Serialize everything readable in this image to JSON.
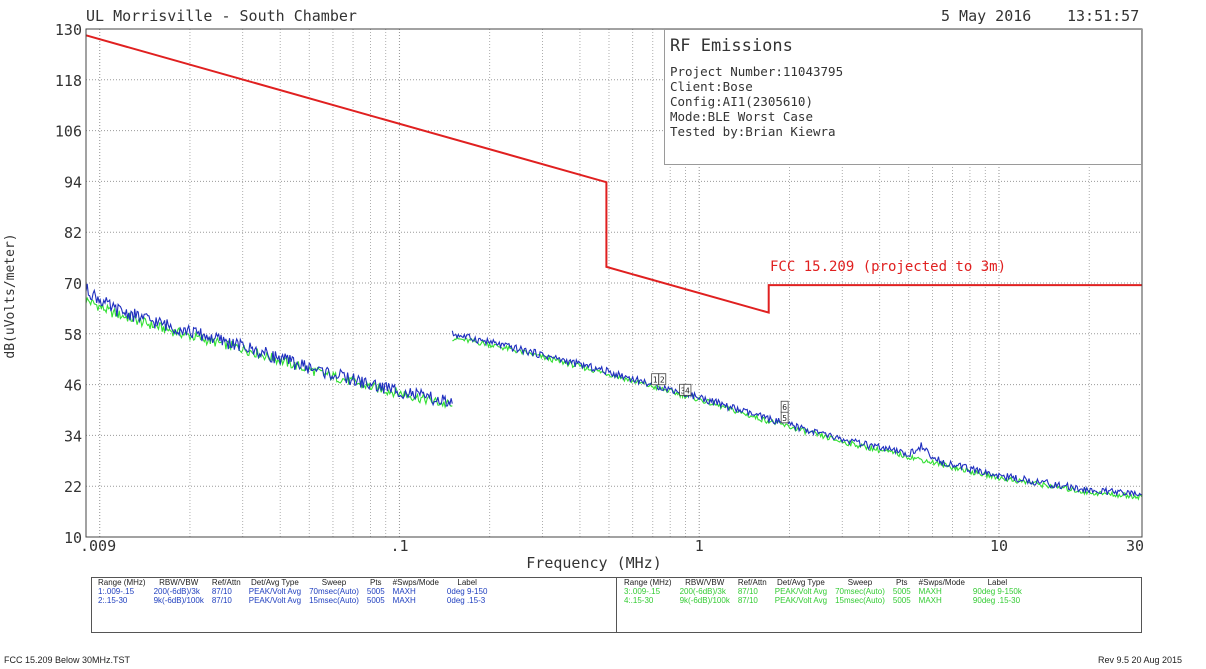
{
  "header": {
    "site": "UL Morrisville - South Chamber",
    "date": "5 May 2016",
    "time": "13:51:57"
  },
  "info_box": {
    "title": "RF Emissions",
    "lines": [
      "Project Number:11043795",
      "Client:Bose",
      "Config:AI1(2305610)",
      "Mode:BLE Worst Case",
      "Tested by:Brian Kiewra"
    ]
  },
  "limit_label": "FCC 15.209 (projected to 3m)",
  "colors": {
    "limit": "#e02020",
    "trace_peak": "#1f2fbf",
    "trace_avg": "#33e033",
    "grid": "#9a9a9a",
    "axis": "#444444"
  },
  "chart_data": {
    "type": "line",
    "title": "",
    "xlabel": "Frequency (MHz)",
    "ylabel": "dB(uVolts/meter)",
    "x_scale": "log",
    "xlim": [
      0.009,
      30
    ],
    "ylim": [
      10,
      130
    ],
    "x_ticks": [
      {
        "value": 0.009,
        "label": ".009"
      },
      {
        "value": 0.1,
        "label": ".1"
      },
      {
        "value": 1,
        "label": "1"
      },
      {
        "value": 10,
        "label": "10"
      },
      {
        "value": 30,
        "label": "30"
      }
    ],
    "y_ticks": [
      130,
      118,
      106,
      94,
      82,
      70,
      58,
      46,
      34,
      22,
      10
    ],
    "grid": true,
    "limit_line": {
      "name": "FCC 15.209 (projected to 3m)",
      "points": [
        [
          0.009,
          128.5
        ],
        [
          0.49,
          93.8
        ],
        [
          0.49,
          73.8
        ],
        [
          1.705,
          63.0
        ],
        [
          1.705,
          69.5
        ],
        [
          30,
          69.5
        ]
      ]
    },
    "series": [
      {
        "role": "peak",
        "segments": [
          [
            [
              0.009,
              68.5
            ],
            [
              0.011,
              64.0
            ],
            [
              0.015,
              61.0
            ],
            [
              0.02,
              58.5
            ],
            [
              0.03,
              55.0
            ],
            [
              0.05,
              50.0
            ],
            [
              0.08,
              46.0
            ],
            [
              0.1,
              44.5
            ],
            [
              0.15,
              41.5
            ]
          ],
          [
            [
              0.15,
              58.0
            ],
            [
              0.2,
              56.0
            ],
            [
              0.3,
              53.0
            ],
            [
              0.5,
              49.0
            ],
            [
              0.7,
              46.0
            ],
            [
              1.0,
              43.0
            ],
            [
              1.5,
              39.0
            ],
            [
              2.0,
              36.5
            ],
            [
              3.0,
              33.0
            ],
            [
              5.0,
              29.5
            ],
            [
              5.5,
              31.5
            ],
            [
              6.0,
              28.5
            ],
            [
              8.0,
              26.0
            ],
            [
              10.0,
              24.5
            ],
            [
              15.0,
              22.5
            ],
            [
              20.0,
              21.0
            ],
            [
              30.0,
              20.0
            ]
          ]
        ]
      },
      {
        "role": "average",
        "segments": [
          [
            [
              0.009,
              66.0
            ],
            [
              0.011,
              63.0
            ],
            [
              0.015,
              60.0
            ],
            [
              0.02,
              57.5
            ],
            [
              0.03,
              54.5
            ],
            [
              0.05,
              49.5
            ],
            [
              0.08,
              45.5
            ],
            [
              0.1,
              44.0
            ],
            [
              0.15,
              41.0
            ]
          ],
          [
            [
              0.15,
              57.0
            ],
            [
              0.2,
              55.5
            ],
            [
              0.3,
              52.5
            ],
            [
              0.5,
              48.5
            ],
            [
              0.7,
              45.5
            ],
            [
              1.0,
              42.5
            ],
            [
              1.5,
              38.5
            ],
            [
              2.0,
              36.0
            ],
            [
              3.0,
              32.5
            ],
            [
              5.0,
              29.0
            ],
            [
              8.0,
              25.5
            ],
            [
              10.0,
              24.0
            ],
            [
              15.0,
              22.0
            ],
            [
              20.0,
              20.5
            ],
            [
              30.0,
              19.5
            ]
          ]
        ]
      }
    ],
    "markers": [
      {
        "label": "1",
        "x": 0.71,
        "y": 45.5
      },
      {
        "label": "2",
        "x": 0.75,
        "y": 45.5
      },
      {
        "label": "3",
        "x": 0.88,
        "y": 43.0
      },
      {
        "label": "4",
        "x": 0.91,
        "y": 43.0
      },
      {
        "label": "5",
        "x": 1.92,
        "y": 36.5
      },
      {
        "label": "6",
        "x": 1.92,
        "y": 39.0
      }
    ]
  },
  "settings_table": {
    "headers": [
      "Range (MHz)",
      "RBW/VBW",
      "Ref/Attn",
      "Det/Avg Type",
      "Sweep",
      "Pts",
      "#Swps/Mode",
      "Label"
    ],
    "left_rows": [
      [
        "1:.009-.15",
        "200(-6dB)/3k",
        "87/10",
        "PEAK/Volt Avg",
        "70msec(Auto)",
        "5005",
        "MAXH",
        "0deg 9-150"
      ],
      [
        "2:.15-30",
        "9k(-6dB)/100k",
        "87/10",
        "PEAK/Volt Avg",
        "15msec(Auto)",
        "5005",
        "MAXH",
        "0deg .15-3"
      ]
    ],
    "right_rows": [
      [
        "3:.009-.15",
        "200(-6dB)/3k",
        "87/10",
        "PEAK/Volt Avg",
        "70msec(Auto)",
        "5005",
        "MAXH",
        "90deg 9-150k"
      ],
      [
        "4:.15-30",
        "9k(-6dB)/100k",
        "87/10",
        "PEAK/Volt Avg",
        "15msec(Auto)",
        "5005",
        "MAXH",
        "90deg .15-30"
      ]
    ]
  },
  "footer": {
    "left": "FCC 15.209 Below 30MHz.TST",
    "right": "Rev 9.5 20 Aug 2015"
  }
}
